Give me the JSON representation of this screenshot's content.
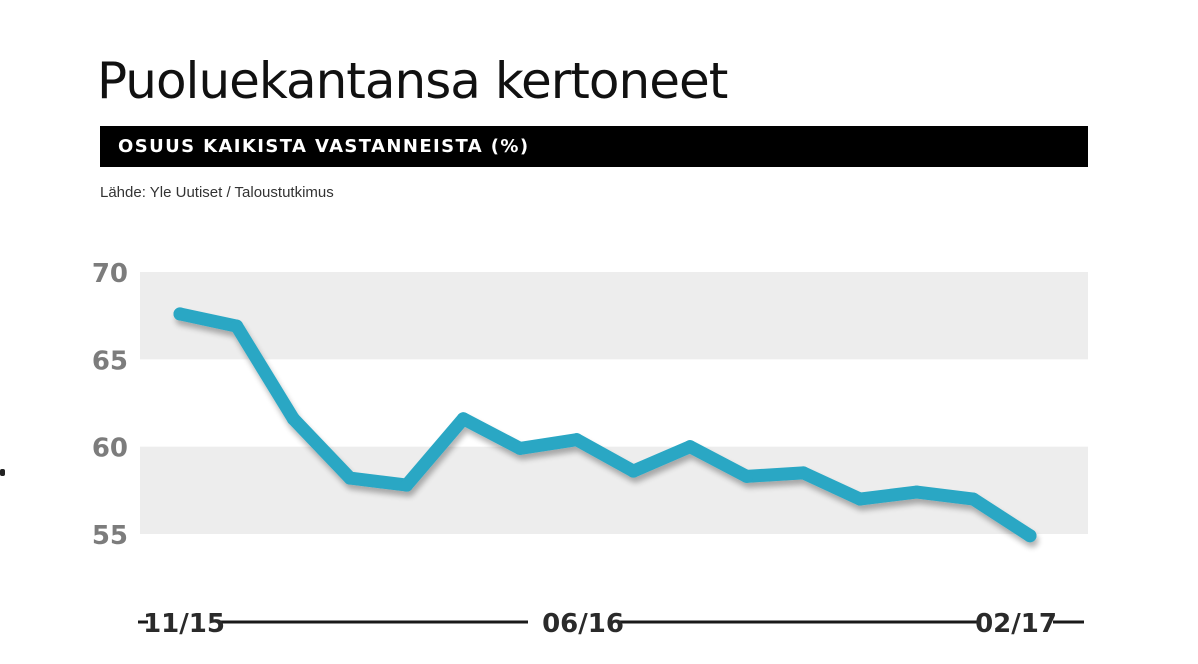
{
  "chart_data": {
    "type": "line",
    "title": "Puoluekantansa kertoneet",
    "subtitle": "OSUUS KAIKISTA VASTANNEISTA (%)",
    "source": "Lähde: Yle Uutiset / Taloustutkimus",
    "ylim": [
      55,
      70
    ],
    "yticks": [
      "70",
      "65",
      "60",
      "55"
    ],
    "xticks": [
      "11/15",
      "06/16",
      "02/17"
    ],
    "series": [
      {
        "values": [
          67.6,
          66.9,
          61.6,
          58.2,
          57.8,
          61.6,
          59.9,
          60.4,
          58.6,
          60.0,
          58.3,
          58.5,
          57.0,
          57.4,
          57.0,
          54.9
        ]
      }
    ],
    "colors": {
      "line": "#2aa7c4",
      "band": "#ededed",
      "axis_text": "#7c7c7c"
    },
    "grid": "alternating bands"
  }
}
